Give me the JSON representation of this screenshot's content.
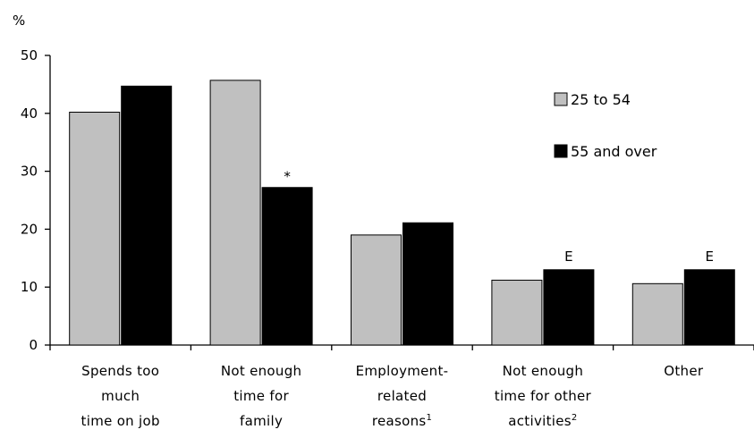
{
  "chart_data": {
    "type": "bar",
    "ylabel": "%",
    "ylim": [
      0,
      50
    ],
    "yticks": [
      0,
      10,
      20,
      30,
      40,
      50
    ],
    "grid": false,
    "legend_position": "top-right",
    "categories": [
      {
        "lines": [
          "Spends too",
          "much",
          "time on job"
        ],
        "sup": ""
      },
      {
        "lines": [
          "Not enough",
          "time for",
          "family"
        ],
        "sup": ""
      },
      {
        "lines": [
          "Employment-",
          "related",
          "reasons"
        ],
        "sup": "1"
      },
      {
        "lines": [
          "Not enough",
          "time for other",
          "activities"
        ],
        "sup": "2"
      },
      {
        "lines": [
          "Other"
        ],
        "sup": ""
      }
    ],
    "series": [
      {
        "name": "25 to 54",
        "color": "#c0c0c0",
        "values": [
          40.2,
          45.7,
          19.0,
          11.2,
          10.6
        ],
        "flags": [
          "",
          "",
          "",
          "",
          ""
        ]
      },
      {
        "name": "55 and over",
        "color": "#000000",
        "values": [
          44.7,
          27.2,
          21.1,
          13.0,
          13.0
        ],
        "flags": [
          "",
          "*",
          "",
          "E",
          "E"
        ]
      }
    ]
  }
}
